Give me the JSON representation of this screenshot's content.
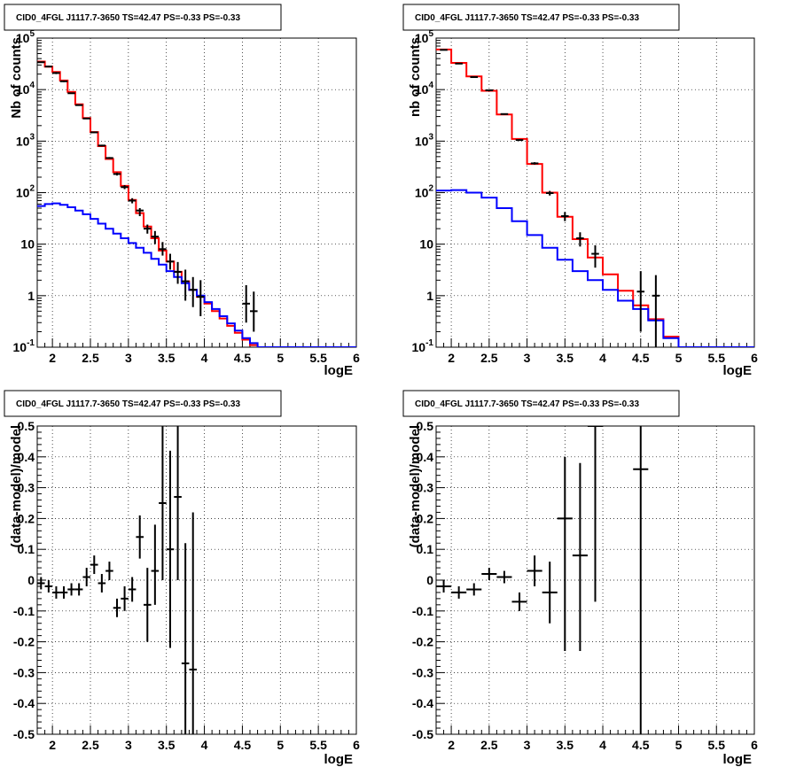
{
  "page": {
    "title": "CID0_4FGL J1117.7-3650 TS=42.47 PS=-0.33 PS=-0.33"
  },
  "colors": {
    "data": "#000000",
    "total_model": "#ff0000",
    "source_model": "#0000ff",
    "grid": "#000000",
    "background": "#ffffff"
  },
  "chart_data": [
    {
      "type": "line",
      "title": "CID0_4FGL J1117.7-3650 TS=42.47 PS=-0.33 PS=-0.33",
      "xlabel": "logE",
      "ylabel": "Nb of counts",
      "xlim": [
        1.8,
        6.0
      ],
      "ylim": [
        0.1,
        100000
      ],
      "yscale": "log",
      "grid": true,
      "x_ticks": [
        "2",
        "2.5",
        "3",
        "3.5",
        "4",
        "4.5",
        "5",
        "5.5",
        "6"
      ],
      "y_ticks": [
        "10^-1",
        "1",
        "10",
        "10^2",
        "10^3",
        "10^4",
        "10^5"
      ],
      "bin_edges": [
        1.8,
        1.9,
        2.0,
        2.1,
        2.2,
        2.3,
        2.4,
        2.5,
        2.6,
        2.7,
        2.8,
        2.9,
        3.0,
        3.1,
        3.2,
        3.3,
        3.4,
        3.5,
        3.6,
        3.7,
        3.8,
        3.9,
        4.0,
        4.1,
        4.2,
        4.3,
        4.4,
        4.5,
        4.6,
        4.7,
        4.8,
        4.9,
        5.0,
        5.1,
        6.0
      ],
      "series": [
        {
          "role": "total_model",
          "values": [
            35000,
            28000,
            22000,
            15000,
            9000,
            5200,
            2800,
            1500,
            800,
            450,
            250,
            135,
            72,
            40,
            22,
            13,
            7.5,
            4.6,
            2.9,
            1.9,
            1.3,
            0.95,
            0.7,
            0.5,
            0.36,
            0.26,
            0.19,
            0.14,
            0.11,
            0.1,
            0.1,
            0.1,
            0.1,
            0.1
          ]
        },
        {
          "role": "source_model",
          "values": [
            55,
            60,
            62,
            58,
            52,
            45,
            38,
            31,
            25,
            20,
            16,
            13,
            10.5,
            8.5,
            6.8,
            5.2,
            4.0,
            3.0,
            2.3,
            1.75,
            1.3,
            1.0,
            0.75,
            0.55,
            0.4,
            0.29,
            0.21,
            0.15,
            0.12,
            0.1,
            0.1,
            0.1,
            0.1,
            0.1
          ]
        },
        {
          "role": "data",
          "x": [
            1.85,
            1.95,
            2.05,
            2.15,
            2.25,
            2.35,
            2.45,
            2.55,
            2.65,
            2.75,
            2.85,
            2.95,
            3.05,
            3.15,
            3.25,
            3.35,
            3.45,
            3.55,
            3.65,
            3.75,
            3.85,
            3.95,
            4.55,
            4.65
          ],
          "y": [
            34000,
            28000,
            21000,
            14500,
            8500,
            5000,
            2750,
            1480,
            820,
            470,
            230,
            128,
            70,
            45,
            20,
            14,
            8,
            4.6,
            2.9,
            1.9,
            1.3,
            0.95,
            0.7,
            0.5
          ],
          "err_low": [
            33000,
            27000,
            20000,
            14000,
            8300,
            4900,
            2700,
            1440,
            790,
            450,
            215,
            117,
            62,
            35,
            16,
            10,
            6,
            3.2,
            1.7,
            0.8,
            0.6,
            0.4,
            0.3,
            0.2
          ],
          "err_high": [
            35000,
            29000,
            22000,
            15000,
            8700,
            5100,
            2800,
            1520,
            850,
            490,
            245,
            140,
            78,
            50,
            24,
            18,
            11,
            6.5,
            4.5,
            3.2,
            2.3,
            2.0,
            1.6,
            1.2
          ]
        }
      ]
    },
    {
      "type": "line",
      "title": "CID0_4FGL J1117.7-3650 TS=42.47 PS=-0.33 PS=-0.33",
      "xlabel": "logE",
      "ylabel": "nb of counts",
      "xlim": [
        1.8,
        6.0
      ],
      "ylim": [
        0.1,
        100000
      ],
      "yscale": "log",
      "grid": true,
      "x_ticks": [
        "2",
        "2.5",
        "3",
        "3.5",
        "4",
        "4.5",
        "5",
        "5.5",
        "6"
      ],
      "y_ticks": [
        "10^-1",
        "1",
        "10",
        "10^2",
        "10^3",
        "10^4",
        "10^5"
      ],
      "bin_edges": [
        1.8,
        2.0,
        2.2,
        2.4,
        2.6,
        2.8,
        3.0,
        3.2,
        3.4,
        3.6,
        3.8,
        4.0,
        4.2,
        4.4,
        4.6,
        4.8,
        5.0,
        6.0
      ],
      "series": [
        {
          "role": "total_model",
          "values": [
            60000,
            33000,
            18000,
            9500,
            3300,
            1100,
            360,
            100,
            34,
            12.5,
            5.5,
            2.6,
            1.25,
            0.65,
            0.35,
            0.16,
            0.1
          ]
        },
        {
          "role": "source_model",
          "values": [
            110,
            112,
            100,
            80,
            50,
            28,
            15,
            8.5,
            5,
            3,
            2,
            1.3,
            0.8,
            0.55,
            0.33,
            0.15,
            0.1
          ]
        },
        {
          "role": "data",
          "x": [
            1.9,
            2.1,
            2.3,
            2.5,
            2.7,
            2.9,
            3.1,
            3.3,
            3.5,
            3.7,
            3.9,
            4.5,
            4.7
          ],
          "y": [
            59000,
            32000,
            17500,
            9700,
            3350,
            1050,
            370,
            98,
            35,
            13,
            6.5,
            1.2,
            1.0
          ],
          "err_low": [
            58000,
            31500,
            17200,
            9500,
            3250,
            1010,
            350,
            88,
            28,
            9,
            3.5,
            0.2,
            0.1
          ],
          "err_high": [
            60000,
            32500,
            17800,
            9900,
            3450,
            1090,
            390,
            108,
            42,
            17,
            9.5,
            3.0,
            2.5
          ]
        }
      ]
    },
    {
      "type": "scatter",
      "title": "CID0_4FGL J1117.7-3650 TS=42.47 PS=-0.33 PS=-0.33",
      "xlabel": "logE",
      "ylabel": "(data-model)/model",
      "xlim": [
        1.8,
        6.0
      ],
      "ylim": [
        -0.5,
        0.5
      ],
      "grid": true,
      "x_ticks": [
        "2",
        "2.5",
        "3",
        "3.5",
        "4",
        "4.5",
        "5",
        "5.5",
        "6"
      ],
      "y_ticks": [
        "-0.5",
        "-0.4",
        "-0.3",
        "-0.2",
        "-0.1",
        "0",
        "0.1",
        "0.2",
        "0.3",
        "0.4",
        "0.5"
      ],
      "series": [
        {
          "role": "data",
          "x": [
            1.85,
            1.95,
            2.05,
            2.15,
            2.25,
            2.35,
            2.45,
            2.55,
            2.65,
            2.75,
            2.85,
            2.95,
            3.05,
            3.15,
            3.25,
            3.35,
            3.45,
            3.55,
            3.65,
            3.75,
            3.85
          ],
          "y": [
            -0.01,
            -0.02,
            -0.04,
            -0.04,
            -0.03,
            -0.03,
            0.01,
            0.05,
            -0.01,
            0.03,
            -0.09,
            -0.06,
            -0.03,
            0.14,
            -0.08,
            0.03,
            0.25,
            0.1,
            0.27,
            -0.27,
            -0.29
          ],
          "err_low": [
            -0.03,
            -0.04,
            -0.06,
            -0.06,
            -0.05,
            -0.05,
            -0.02,
            0.02,
            -0.04,
            -0.0,
            -0.12,
            -0.1,
            -0.07,
            0.07,
            -0.2,
            -0.08,
            0.0,
            -0.22,
            0.0,
            -0.6,
            -0.6
          ],
          "err_high": [
            0.01,
            0.0,
            -0.02,
            -0.02,
            -0.01,
            -0.01,
            0.04,
            0.08,
            0.02,
            0.06,
            -0.06,
            -0.02,
            0.01,
            0.21,
            0.04,
            0.18,
            0.5,
            0.42,
            0.6,
            0.12,
            0.22
          ],
          "x_halfwidth": 0.05
        }
      ]
    },
    {
      "type": "scatter",
      "title": "CID0_4FGL J1117.7-3650 TS=42.47 PS=-0.33 PS=-0.33",
      "xlabel": "logE",
      "ylabel": "(data-model)/model",
      "xlim": [
        1.8,
        6.0
      ],
      "ylim": [
        -0.5,
        0.5
      ],
      "grid": true,
      "x_ticks": [
        "2",
        "2.5",
        "3",
        "3.5",
        "4",
        "4.5",
        "5",
        "5.5",
        "6"
      ],
      "y_ticks": [
        "-0.5",
        "-0.4",
        "-0.3",
        "-0.2",
        "-0.1",
        "0",
        "0.1",
        "0.2",
        "0.3",
        "0.4",
        "0.5"
      ],
      "series": [
        {
          "role": "data",
          "x": [
            1.9,
            2.1,
            2.3,
            2.5,
            2.7,
            2.9,
            3.1,
            3.3,
            3.5,
            3.7,
            3.9,
            4.5
          ],
          "y": [
            -0.02,
            -0.04,
            -0.03,
            0.02,
            0.01,
            -0.07,
            0.03,
            -0.04,
            0.2,
            0.08,
            0.5,
            0.36
          ],
          "err_low": [
            -0.04,
            -0.06,
            -0.05,
            -0.0,
            -0.01,
            -0.1,
            -0.02,
            -0.14,
            -0.23,
            -0.23,
            -0.07,
            -0.6
          ],
          "err_high": [
            0.0,
            -0.02,
            -0.01,
            0.04,
            0.03,
            -0.04,
            0.08,
            0.06,
            0.4,
            0.38,
            0.6,
            0.6
          ],
          "x_halfwidth": 0.1
        }
      ]
    }
  ]
}
